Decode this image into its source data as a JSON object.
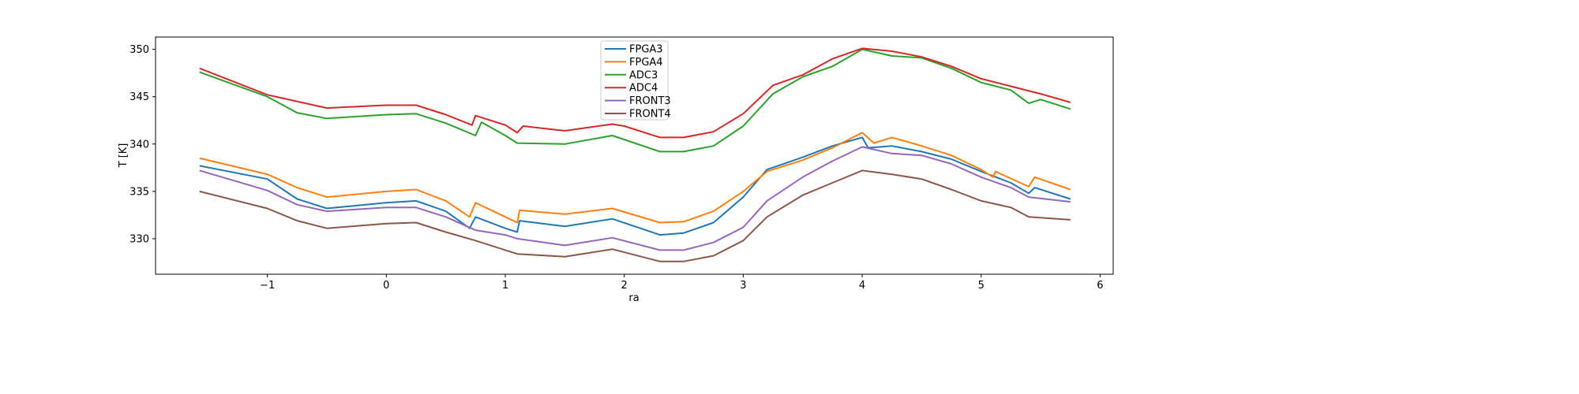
{
  "chart_data": {
    "type": "line",
    "title": "",
    "xlabel": "ra",
    "ylabel": "T [K]",
    "xlim": [
      -1.94,
      6.11
    ],
    "ylim": [
      326.25,
      351.3
    ],
    "xticks": [
      -1,
      0,
      1,
      2,
      3,
      4,
      5,
      6
    ],
    "xtick_labels": [
      "−1",
      "0",
      "1",
      "2",
      "3",
      "4",
      "5",
      "6"
    ],
    "yticks": [
      330,
      335,
      340,
      345,
      350
    ],
    "ytick_labels": [
      "330",
      "335",
      "340",
      "345",
      "350"
    ],
    "grid": false,
    "legend_position": "top-center",
    "series": [
      {
        "name": "FPGA3",
        "color": "#1f77b4",
        "x": [
          -1.57,
          -1,
          -0.75,
          -0.5,
          0,
          0.25,
          0.5,
          0.7,
          0.75,
          1.0,
          1.1,
          1.12,
          1.5,
          1.9,
          2.3,
          2.5,
          2.75,
          3.0,
          3.2,
          3.5,
          3.75,
          4.0,
          4.05,
          4.25,
          4.5,
          4.75,
          5.0,
          5.25,
          5.4,
          5.45,
          5.75
        ],
        "y": [
          337.7,
          336.3,
          334.2,
          333.2,
          333.8,
          334.0,
          332.9,
          331.1,
          332.3,
          331.1,
          330.7,
          331.9,
          331.3,
          332.1,
          330.4,
          330.6,
          331.7,
          334.4,
          337.3,
          338.6,
          339.8,
          340.7,
          339.6,
          339.8,
          339.2,
          338.4,
          337.1,
          335.9,
          334.8,
          335.4,
          334.2
        ]
      },
      {
        "name": "FPGA4",
        "color": "#ff7f0e",
        "x": [
          -1.57,
          -1,
          -0.75,
          -0.5,
          0,
          0.25,
          0.5,
          0.7,
          0.75,
          1.0,
          1.1,
          1.12,
          1.5,
          1.9,
          2.3,
          2.5,
          2.75,
          3.0,
          3.2,
          3.5,
          3.75,
          4.0,
          4.1,
          4.25,
          4.5,
          4.75,
          5.0,
          5.1,
          5.12,
          5.4,
          5.45,
          5.75
        ],
        "y": [
          338.5,
          336.8,
          335.4,
          334.4,
          335.0,
          335.2,
          334.0,
          332.3,
          333.8,
          332.3,
          331.7,
          333.0,
          332.6,
          333.2,
          331.7,
          331.8,
          332.9,
          335.0,
          337.1,
          338.3,
          339.6,
          341.2,
          340.1,
          340.7,
          339.8,
          338.8,
          337.3,
          336.5,
          337.1,
          335.5,
          336.5,
          335.2
        ]
      },
      {
        "name": "ADC3",
        "color": "#2ca02c",
        "x": [
          -1.57,
          -1,
          -0.75,
          -0.5,
          0,
          0.25,
          0.5,
          0.75,
          0.8,
          1.0,
          1.1,
          1.5,
          1.9,
          2.3,
          2.5,
          2.75,
          3.0,
          3.25,
          3.5,
          3.75,
          4.0,
          4.25,
          4.5,
          4.75,
          5.0,
          5.25,
          5.4,
          5.5,
          5.75
        ],
        "y": [
          347.6,
          345.0,
          343.3,
          342.7,
          343.1,
          343.2,
          342.2,
          340.9,
          342.3,
          340.9,
          340.1,
          340.0,
          340.9,
          339.2,
          339.2,
          339.8,
          341.9,
          345.3,
          347.1,
          348.2,
          350.0,
          349.3,
          349.1,
          348.0,
          346.5,
          345.7,
          344.3,
          344.7,
          343.7
        ]
      },
      {
        "name": "ADC4",
        "color": "#d62728",
        "x": [
          -1.57,
          -1,
          -0.5,
          0,
          0.25,
          0.5,
          0.72,
          0.75,
          1.0,
          1.1,
          1.15,
          1.5,
          1.9,
          2.0,
          2.3,
          2.5,
          2.75,
          3.0,
          3.25,
          3.5,
          3.75,
          4.0,
          4.25,
          4.5,
          4.75,
          5.0,
          5.25,
          5.5,
          5.75
        ],
        "y": [
          348.0,
          345.2,
          343.8,
          344.1,
          344.1,
          343.1,
          342.0,
          343.0,
          342.0,
          341.2,
          341.9,
          341.4,
          342.1,
          341.9,
          340.7,
          340.7,
          341.3,
          343.2,
          346.2,
          347.3,
          349.0,
          350.1,
          349.8,
          349.2,
          348.2,
          346.9,
          346.1,
          345.3,
          344.4
        ]
      },
      {
        "name": "FRONT3",
        "color": "#9467bd",
        "x": [
          -1.57,
          -1,
          -0.75,
          -0.5,
          0,
          0.25,
          0.5,
          0.75,
          1.0,
          1.1,
          1.5,
          1.9,
          2.3,
          2.5,
          2.75,
          3.0,
          3.2,
          3.5,
          3.75,
          4.0,
          4.25,
          4.5,
          4.75,
          5.0,
          5.25,
          5.4,
          5.75
        ],
        "y": [
          337.2,
          335.1,
          333.6,
          332.9,
          333.3,
          333.3,
          332.3,
          330.9,
          330.4,
          330.0,
          329.3,
          330.1,
          328.8,
          328.8,
          329.6,
          331.2,
          334.0,
          336.5,
          338.2,
          339.7,
          339.0,
          338.8,
          337.9,
          336.5,
          335.4,
          334.4,
          333.9
        ]
      },
      {
        "name": "FRONT4",
        "color": "#8c564b",
        "x": [
          -1.57,
          -1,
          -0.75,
          -0.5,
          0,
          0.25,
          0.5,
          0.75,
          1.0,
          1.1,
          1.5,
          1.9,
          2.3,
          2.5,
          2.75,
          3.0,
          3.2,
          3.5,
          3.75,
          4.0,
          4.25,
          4.5,
          4.75,
          5.0,
          5.25,
          5.4,
          5.75
        ],
        "y": [
          335.0,
          333.2,
          331.9,
          331.1,
          331.6,
          331.7,
          330.7,
          329.8,
          328.8,
          328.4,
          328.1,
          328.9,
          327.6,
          327.6,
          328.2,
          329.8,
          332.3,
          334.6,
          335.9,
          337.2,
          336.8,
          336.3,
          335.2,
          334.0,
          333.3,
          332.3,
          332.0
        ]
      }
    ]
  }
}
